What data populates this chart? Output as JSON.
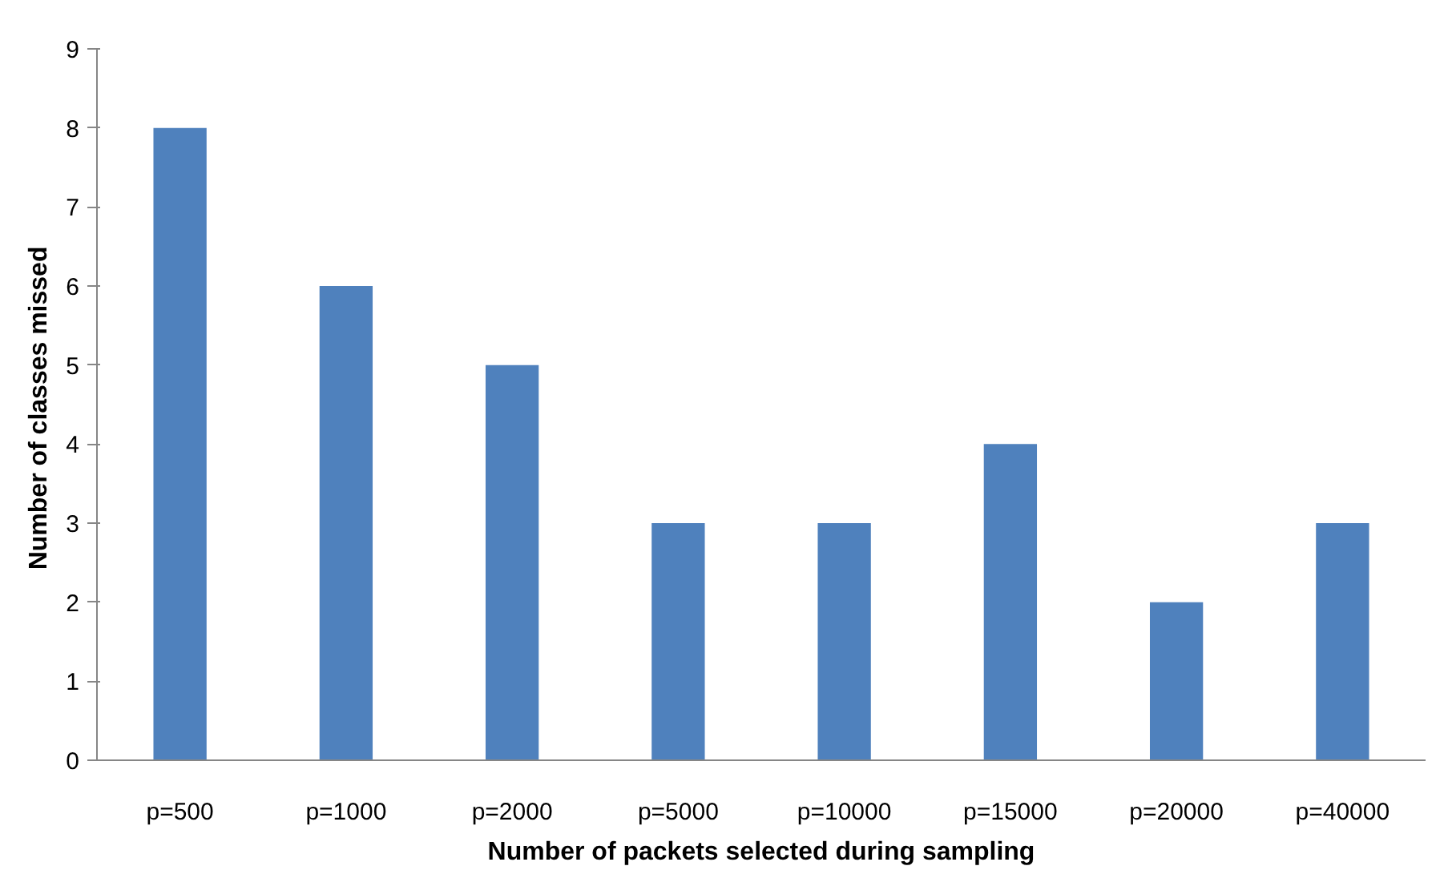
{
  "chart_data": {
    "type": "bar",
    "xlabel": "Number of packets selected during sampling",
    "ylabel": "Number of classes  missed",
    "categories": [
      "p=500",
      "p=1000",
      "p=2000",
      "p=5000",
      "p=10000",
      "p=15000",
      "p=20000",
      "p=40000"
    ],
    "values": [
      8,
      6,
      5,
      3,
      3,
      4,
      2,
      3
    ],
    "color": "#4f81bd",
    "ylim": [
      0,
      9
    ],
    "yticks": [
      0,
      1,
      2,
      3,
      4,
      5,
      6,
      7,
      8,
      9
    ],
    "grid": false
  }
}
